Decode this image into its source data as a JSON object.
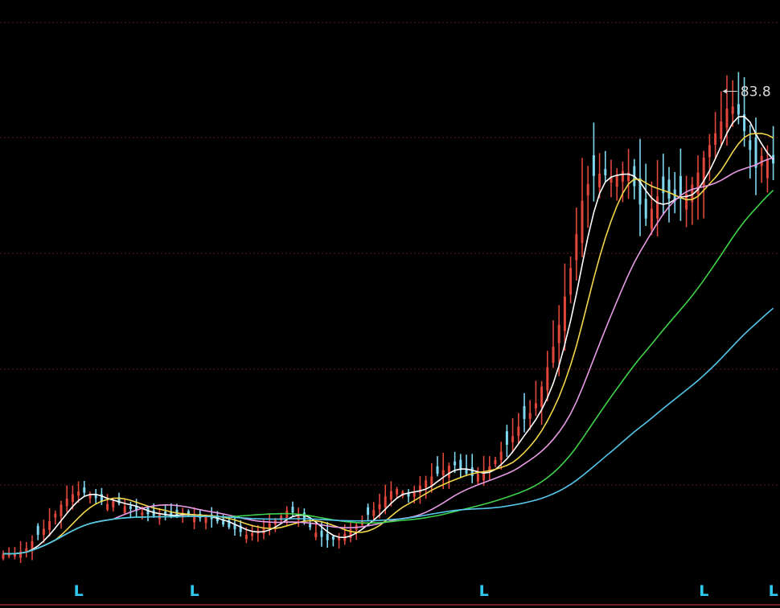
{
  "chart_data": {
    "type": "candlestick",
    "peak_label": "83.8",
    "markers": [
      "L",
      "L",
      "L",
      "L",
      "L"
    ],
    "marker_bars": [
      13,
      33,
      83,
      121,
      133
    ],
    "grid": true,
    "colors": {
      "background": "#000000",
      "up": "#e0473a",
      "down": "#7fd6ee",
      "ma_fast": "#ffffff",
      "ma_mid": "#f2d64a",
      "ma_slow": "#e79be6",
      "ma_long": "#3fd34a",
      "ma_longest": "#55c6ea",
      "grid": "#5a1c1c",
      "marker": "#2ec9f0"
    },
    "close": [
      -2.0,
      -2.0,
      -2.0,
      -1.6,
      -1.0,
      0.3,
      1.5,
      2.6,
      4.0,
      5.4,
      7.1,
      8.2,
      9.0,
      9.5,
      9.3,
      8.9,
      8.3,
      7.6,
      7.2,
      7.7,
      7.3,
      6.8,
      6.3,
      5.9,
      5.6,
      5.3,
      5.0,
      5.3,
      5.1,
      4.9,
      5.2,
      5.6,
      5.3,
      5.0,
      4.6,
      4.9,
      4.4,
      4.0,
      3.4,
      2.9,
      2.5,
      2.0,
      1.5,
      1.8,
      2.3,
      2.8,
      3.6,
      4.2,
      5.0,
      6.0,
      5.6,
      4.9,
      4.0,
      2.9,
      1.9,
      1.1,
      0.5,
      0.6,
      1.1,
      1.7,
      2.5,
      3.3,
      4.1,
      5.2,
      6.1,
      7.2,
      8.6,
      9.6,
      10.0,
      9.5,
      8.6,
      9.6,
      10.6,
      11.6,
      12.3,
      12.8,
      13.5,
      14.3,
      14.4,
      13.5,
      12.8,
      12.4,
      12.8,
      13.3,
      14.2,
      15.4,
      16.9,
      18.2,
      19.8,
      21.6,
      23.0,
      24.1,
      25.9,
      29.0,
      32.6,
      36.4,
      40.5,
      45.7,
      51.0,
      57.3,
      63.5,
      66.6,
      68.1,
      68.5,
      68.2,
      68.0,
      68.3,
      69.0,
      68.7,
      66.2,
      62.8,
      60.2,
      62.0,
      64.3,
      64.9,
      63.9,
      63.4,
      64.4,
      64.8,
      66.5,
      68.7,
      71.5,
      73.8,
      76.0,
      78.2,
      80.6,
      81.0,
      79.5,
      76.4,
      72.9,
      69.6,
      71.8,
      71.1,
      70.4
    ]
  }
}
